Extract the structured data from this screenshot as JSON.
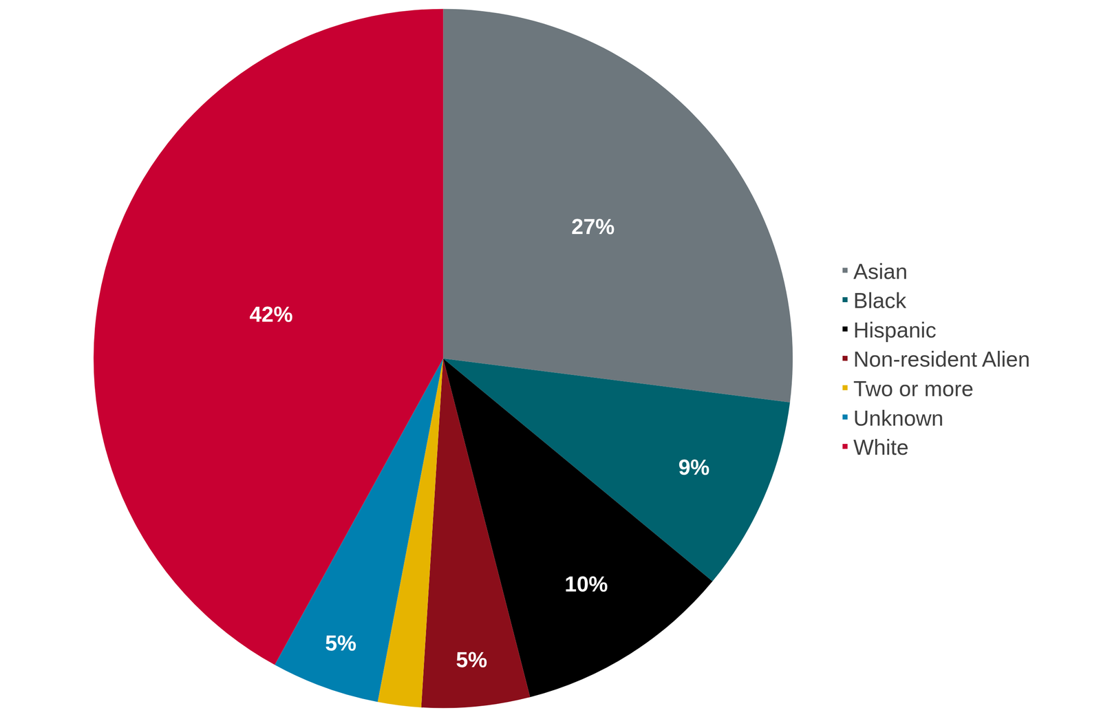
{
  "chart_data": {
    "type": "pie",
    "categories": [
      "Asian",
      "Black",
      "Hispanic",
      "Non-resident Alien",
      "Two or more",
      "Unknown",
      "White"
    ],
    "values": [
      27,
      9,
      10,
      5,
      2,
      5,
      42
    ],
    "value_labels": [
      "27%",
      "9%",
      "10%",
      "5%",
      null,
      "5%",
      "42%"
    ],
    "colors": [
      "#6d777d",
      "#00626e",
      "#000000",
      "#8b0e1a",
      "#e6b400",
      "#0080b0",
      "#c80032"
    ],
    "data_labels": true,
    "legend": "right"
  }
}
